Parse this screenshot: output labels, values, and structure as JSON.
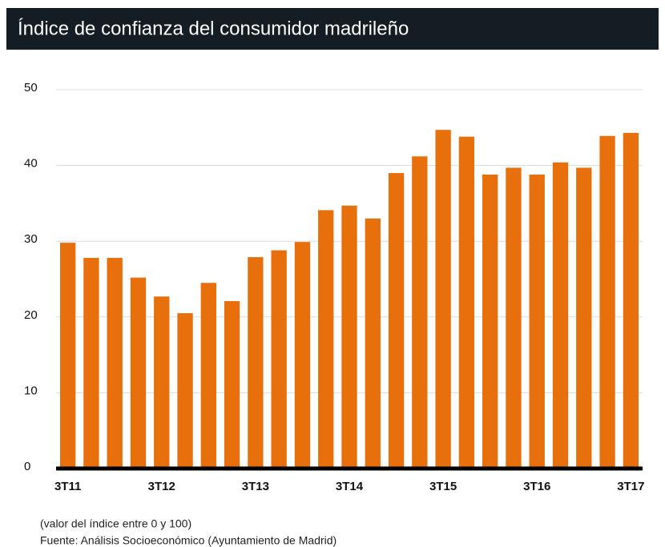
{
  "chart_data": {
    "type": "bar",
    "title": "Índice de confianza del consumidor madrileño",
    "categories": [
      "3T11",
      null,
      null,
      null,
      "3T12",
      null,
      null,
      null,
      "3T13",
      null,
      null,
      null,
      "3T14",
      null,
      null,
      null,
      "3T15",
      null,
      null,
      null,
      "3T16",
      null,
      null,
      null,
      "3T17"
    ],
    "values": [
      29.8,
      27.8,
      27.8,
      25.2,
      22.7,
      20.5,
      24.5,
      22.1,
      27.9,
      28.8,
      29.9,
      34.1,
      34.7,
      33.0,
      39.0,
      41.2,
      44.7,
      43.8,
      38.8,
      39.7,
      38.8,
      40.4,
      39.7,
      43.9,
      44.3
    ],
    "color": "#e8700c",
    "ylim": [
      0,
      50
    ],
    "yticks": [
      0,
      10,
      20,
      30,
      40,
      50
    ],
    "grid": true,
    "note": "(valor del índice entre 0 y 100)",
    "source": "Fuente: Análisis Socioeconómico (Ayuntamiento de Madrid)"
  }
}
